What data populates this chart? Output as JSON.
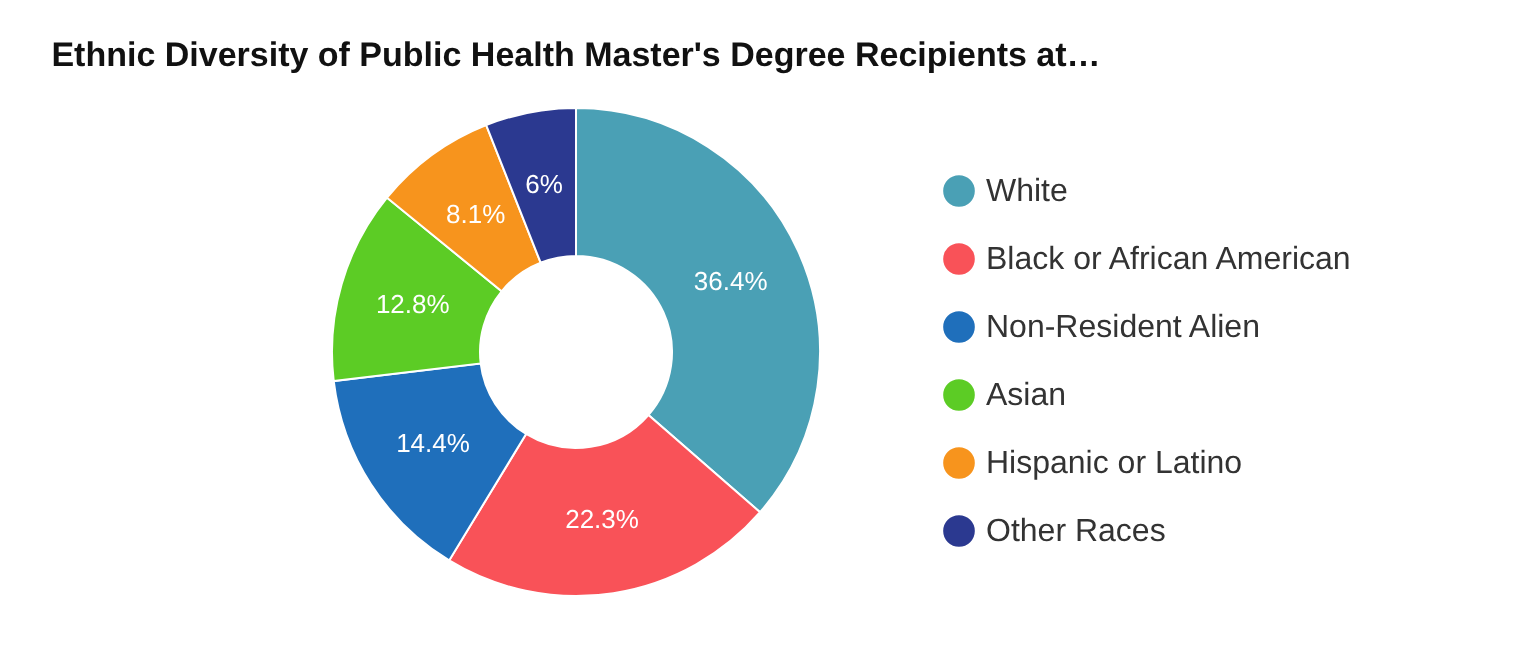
{
  "chart_data": {
    "type": "donut",
    "title": "Ethnic Diversity of Public Health Master's Degree Recipients at…",
    "categories": [
      "White",
      "Black or African American",
      "Non-Resident Alien",
      "Asian",
      "Hispanic or Latino",
      "Other Races"
    ],
    "values": [
      36.4,
      22.3,
      14.4,
      12.8,
      8.1,
      6
    ],
    "colors": [
      "#4aa0b5",
      "#f95258",
      "#1f6fbb",
      "#5ccc25",
      "#f7941d",
      "#2b3990"
    ],
    "value_labels": [
      "36.4%",
      "22.3%",
      "14.4%",
      "12.8%",
      "8.1%",
      "6%"
    ],
    "legend": "right"
  }
}
